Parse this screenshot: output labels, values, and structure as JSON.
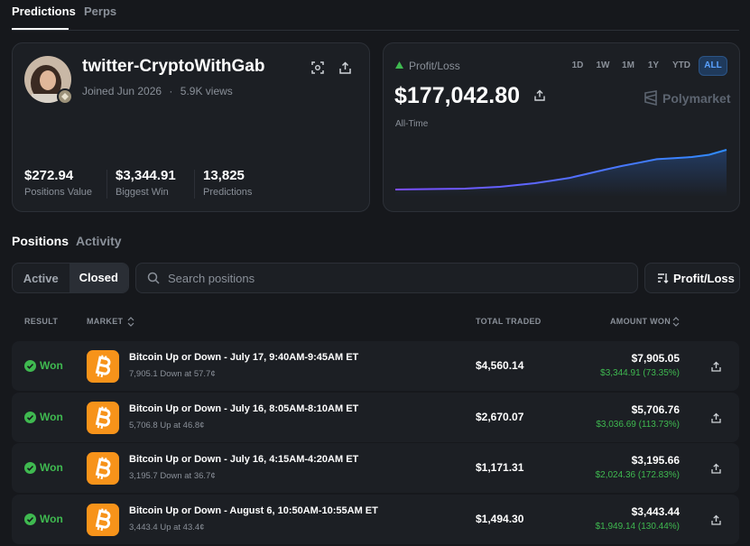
{
  "tabs": {
    "items": [
      "Predictions",
      "Perps"
    ]
  },
  "profile": {
    "name": "twitter-CryptoWithGab",
    "joined": "Joined Jun 2026",
    "separator": "·",
    "views": "5.9K views",
    "stats": [
      {
        "value": "$272.94",
        "label": "Positions Value"
      },
      {
        "value": "$3,344.91",
        "label": "Biggest Win"
      },
      {
        "value": "13,825",
        "label": "Predictions"
      }
    ]
  },
  "pnl": {
    "label": "Profit/Loss",
    "ranges": [
      "1D",
      "1W",
      "1M",
      "1Y",
      "YTD",
      "ALL"
    ],
    "active_range": 5,
    "amount": "$177,042.80",
    "brand": "Polymarket",
    "period": "All-Time",
    "chart": {
      "type": "line",
      "values": [
        0,
        1000,
        2000,
        3000,
        4000,
        8000,
        12000,
        20000,
        28000,
        40000,
        52000,
        70000,
        88000,
        105000,
        120000,
        135000,
        140000,
        145000,
        155000,
        177042.8
      ]
    }
  },
  "section_tabs": {
    "items": [
      "Positions",
      "Activity"
    ]
  },
  "filter": {
    "items": [
      "Active",
      "Closed"
    ]
  },
  "search_placeholder": "Search positions",
  "sort_button": "Profit/Loss",
  "table": {
    "headers": [
      "RESULT",
      "MARKET",
      "TOTAL TRADED",
      "AMOUNT WON"
    ],
    "rows": [
      {
        "result": "Won",
        "market": "Bitcoin Up or Down - July 17, 9:40AM-9:45AM ET",
        "detail": "7,905.1 Down at 57.7¢",
        "total_traded": "$4,560.14",
        "amount_won": "$7,905.05",
        "pnl": "$3,344.91 (73.35%)"
      },
      {
        "result": "Won",
        "market": "Bitcoin Up or Down - July 16, 8:05AM-8:10AM ET",
        "detail": "5,706.8 Up at 46.8¢",
        "total_traded": "$2,670.07",
        "amount_won": "$5,706.76",
        "pnl": "$3,036.69 (113.73%)"
      },
      {
        "result": "Won",
        "market": "Bitcoin Up or Down - July 16, 4:15AM-4:20AM ET",
        "detail": "3,195.7 Down at 36.7¢",
        "total_traded": "$1,171.31",
        "amount_won": "$3,195.66",
        "pnl": "$2,024.36 (172.83%)"
      },
      {
        "result": "Won",
        "market": "Bitcoin Up or Down - August 6, 10:50AM-10:55AM ET",
        "detail": "3,443.4 Up at 43.4¢",
        "total_traded": "$1,494.30",
        "amount_won": "$3,443.44",
        "pnl": "$1,949.14 (130.44%)"
      }
    ]
  }
}
